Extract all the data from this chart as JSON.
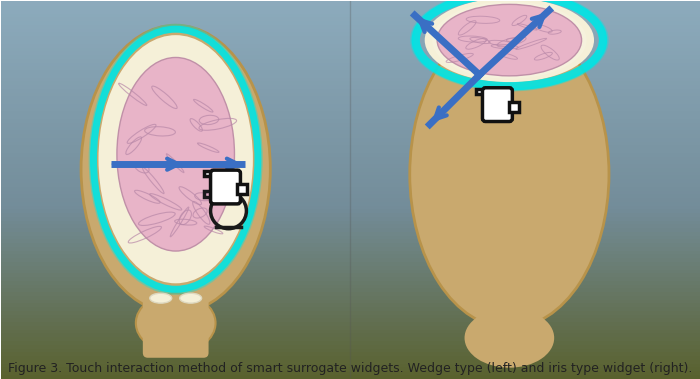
{
  "figsize": [
    7.0,
    3.79
  ],
  "dpi": 100,
  "bg_gradient_top": "#7a9ab5",
  "bg_gradient_mid": "#8fa8b8",
  "bg_gradient_bot": "#7a6a3a",
  "skin_color": "#c9a96e",
  "skin_dark": "#b8934a",
  "brain_color": "#e8b4c8",
  "brain_dark": "#d4a0b8",
  "cyan_color": "#00e5e5",
  "cyan_glow": "#00ffff",
  "cream_color": "#f5f0d8",
  "arrow_color": "#3a6fc4",
  "hand_color": "#1a1a1a",
  "title_text": "Figure 3. Touch interaction method of smart surrogate widgets. Wedge type (left) and iris type widget (right).",
  "title_fontsize": 9,
  "title_color": "#222222"
}
